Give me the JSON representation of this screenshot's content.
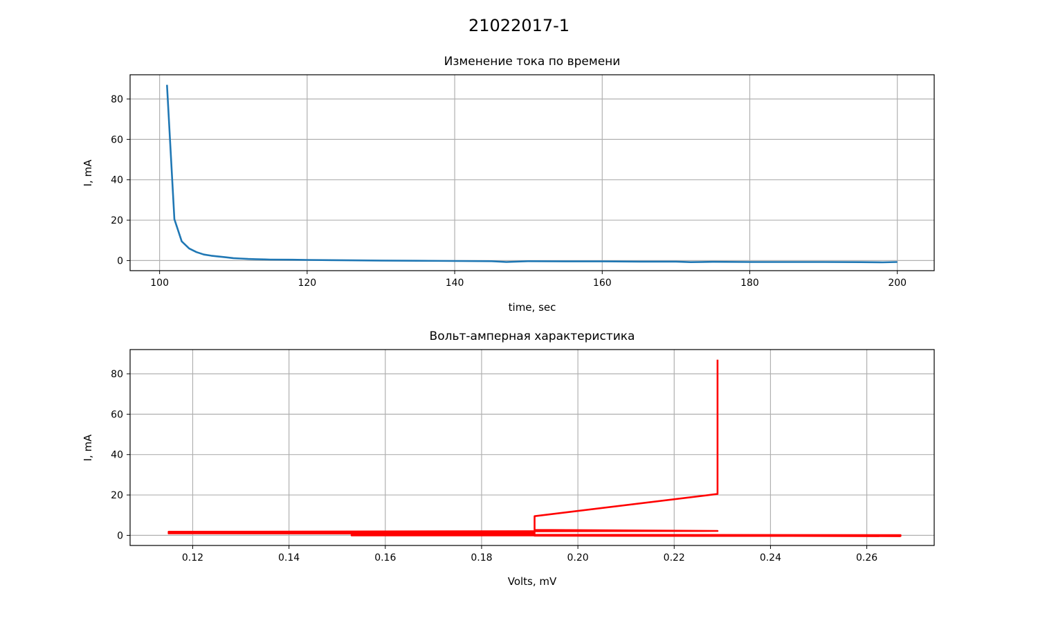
{
  "figure_title": "21022017-1",
  "chart_data": [
    {
      "type": "line",
      "title": "Изменение тока по времени",
      "xlabel": "time, sec",
      "ylabel": "I, mA",
      "xlim": [
        96,
        205
      ],
      "ylim": [
        -5,
        92
      ],
      "xticks": [
        100,
        120,
        140,
        160,
        180,
        200
      ],
      "yticks": [
        0,
        20,
        40,
        60,
        80
      ],
      "grid": true,
      "color": "#1f77b4",
      "x": [
        101,
        102,
        103,
        104,
        105,
        106,
        107,
        108,
        109,
        110,
        111,
        112,
        113,
        114,
        115,
        118,
        120,
        123,
        126,
        130,
        135,
        140,
        145,
        147,
        150,
        155,
        160,
        165,
        170,
        172,
        175,
        180,
        185,
        190,
        195,
        198,
        200
      ],
      "y": [
        87,
        20.5,
        9.5,
        6,
        4.2,
        3,
        2.4,
        2,
        1.6,
        1.2,
        1,
        0.8,
        0.7,
        0.6,
        0.5,
        0.4,
        0.3,
        0.2,
        0.1,
        0,
        -0.1,
        -0.2,
        -0.3,
        -0.7,
        -0.3,
        -0.4,
        -0.4,
        -0.5,
        -0.5,
        -0.8,
        -0.6,
        -0.7,
        -0.7,
        -0.7,
        -0.8,
        -0.9,
        -0.7
      ]
    },
    {
      "type": "line",
      "title": "Вольт-амперная характеристика",
      "xlabel": "Volts, mV",
      "ylabel": "I, mA",
      "xlim": [
        0.107,
        0.274
      ],
      "ylim": [
        -5,
        92
      ],
      "xticks": [
        0.12,
        0.14,
        0.16,
        0.18,
        0.2,
        0.22,
        0.24,
        0.26
      ],
      "xtick_labels": [
        "0.12",
        "0.14",
        "0.16",
        "0.18",
        "0.20",
        "0.22",
        "0.24",
        "0.26"
      ],
      "yticks": [
        0,
        20,
        40,
        60,
        80
      ],
      "grid": true,
      "color": "#ff0000",
      "x": [
        0.229,
        0.229,
        0.191,
        0.191,
        0.229,
        0.115,
        0.191,
        0.115,
        0.191,
        0.115,
        0.191,
        0.153,
        0.191,
        0.267,
        0.153,
        0.267,
        0.191,
        0.267,
        0.191,
        0.191,
        0.267
      ],
      "y": [
        87,
        20.5,
        9.5,
        2.7,
        2.2,
        1.8,
        1.7,
        1.4,
        1.3,
        1.0,
        0.9,
        0.4,
        0.3,
        0.1,
        0,
        -0.1,
        -0.2,
        -0.3,
        -0.2,
        0.1,
        -0.4
      ]
    }
  ]
}
